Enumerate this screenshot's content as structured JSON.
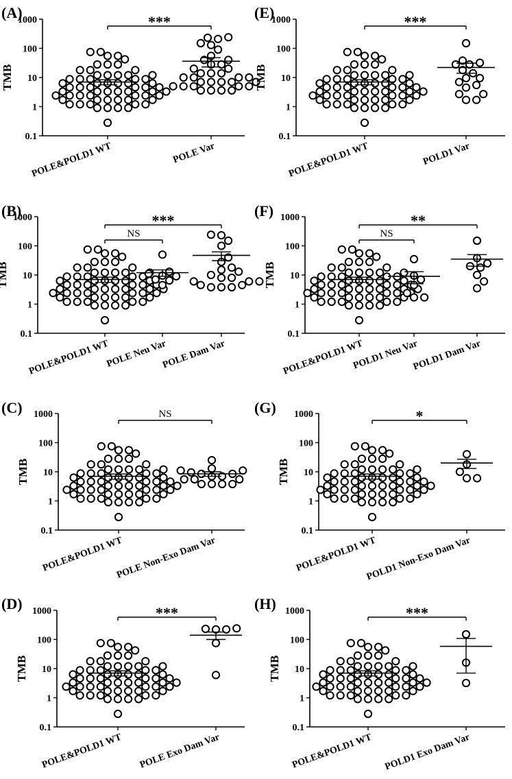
{
  "chart_data": [
    {
      "type": "scatter",
      "panel": "(A)",
      "ylabel": "TMB",
      "yscale": "log",
      "ylim": [
        0.1,
        1000
      ],
      "yticks": [
        "0.1",
        "1",
        "10",
        "100",
        "1000"
      ],
      "categories": [
        "POLE&POLD1 WT",
        "POLE Var"
      ],
      "groups": [
        {
          "mean": 7,
          "sem": [
            5.6,
            8.4
          ],
          "points": [
            0.28,
            0.9,
            0.9,
            0.9,
            0.9,
            1.2,
            1.2,
            1.2,
            1.2,
            1.2,
            1.7,
            1.7,
            1.7,
            1.7,
            1.7,
            1.7,
            2.4,
            2.4,
            2.4,
            2.4,
            2.4,
            2.4,
            2.4,
            3.3,
            3.3,
            3.3,
            3.3,
            3.3,
            3.3,
            3.3,
            4.6,
            4.6,
            4.6,
            4.6,
            4.6,
            4.6,
            6.3,
            6.3,
            6.3,
            6.3,
            6.3,
            6.3,
            8.8,
            8.8,
            8.8,
            8.8,
            8.8,
            12,
            12,
            12,
            12,
            12,
            18,
            18,
            18,
            28,
            28,
            28,
            42,
            55,
            55,
            75,
            75
          ]
        },
        {
          "mean": 36,
          "sem": [
            23,
            48
          ],
          "points": [
            3.6,
            3.6,
            3.6,
            3.6,
            5,
            5,
            5,
            5,
            5,
            7,
            7,
            7,
            7,
            7,
            10,
            10,
            10,
            10,
            14,
            14,
            14,
            20,
            20,
            28,
            28,
            40,
            40,
            55,
            90,
            130,
            150,
            210,
            230,
            240
          ]
        }
      ],
      "comparisons": [
        {
          "from": 0,
          "to": 1,
          "label": "***"
        }
      ]
    },
    {
      "type": "scatter",
      "panel": "(E)",
      "ylabel": "TMB",
      "yscale": "log",
      "ylim": [
        0.1,
        1000
      ],
      "yticks": [
        "0.1",
        "1",
        "10",
        "100",
        "1000"
      ],
      "categories": [
        "POLE&POLD1 WT",
        "POLD1 Var"
      ],
      "groups": [
        {
          "mean": 7,
          "sem": [
            5.6,
            8.4
          ],
          "points": [
            0.28,
            0.9,
            0.9,
            0.9,
            0.9,
            1.2,
            1.2,
            1.2,
            1.2,
            1.2,
            1.7,
            1.7,
            1.7,
            1.7,
            1.7,
            1.7,
            2.4,
            2.4,
            2.4,
            2.4,
            2.4,
            2.4,
            2.4,
            3.3,
            3.3,
            3.3,
            3.3,
            3.3,
            3.3,
            3.3,
            4.6,
            4.6,
            4.6,
            4.6,
            4.6,
            4.6,
            6.3,
            6.3,
            6.3,
            6.3,
            6.3,
            6.3,
            8.8,
            8.8,
            8.8,
            8.8,
            8.8,
            12,
            12,
            12,
            12,
            12,
            18,
            18,
            18,
            28,
            28,
            28,
            42,
            55,
            55,
            75,
            75
          ]
        },
        {
          "mean": 22,
          "sem": [
            14,
            31
          ],
          "points": [
            1.7,
            1.7,
            2.7,
            2.7,
            4.5,
            5.5,
            7,
            9.5,
            9.5,
            14,
            18,
            28,
            28,
            32,
            38,
            150
          ]
        }
      ],
      "comparisons": [
        {
          "from": 0,
          "to": 1,
          "label": "***"
        }
      ]
    },
    {
      "type": "scatter",
      "panel": "(B)",
      "ylabel": "TMB",
      "yscale": "log",
      "ylim": [
        0.1,
        1000
      ],
      "yticks": [
        "0.1",
        "1",
        "10",
        "100",
        "1000"
      ],
      "categories": [
        "POLE&POLD1 WT",
        "POLE Neu Var",
        "POLE Dam Var"
      ],
      "groups": [
        {
          "mean": 7,
          "sem": [
            5.6,
            8.4
          ],
          "points": [
            0.28,
            0.9,
            0.9,
            0.9,
            0.9,
            1.2,
            1.2,
            1.2,
            1.2,
            1.2,
            1.7,
            1.7,
            1.7,
            1.7,
            1.7,
            1.7,
            2.4,
            2.4,
            2.4,
            2.4,
            2.4,
            2.4,
            2.4,
            3.3,
            3.3,
            3.3,
            3.3,
            3.3,
            3.3,
            3.3,
            4.6,
            4.6,
            4.6,
            4.6,
            4.6,
            4.6,
            6.3,
            6.3,
            6.3,
            6.3,
            6.3,
            6.3,
            8.8,
            8.8,
            8.8,
            8.8,
            8.8,
            12,
            12,
            12,
            12,
            12,
            18,
            18,
            18,
            28,
            28,
            28,
            42,
            55,
            55,
            75,
            75
          ]
        },
        {
          "mean": 12,
          "sem": [
            9,
            15
          ],
          "points": [
            4.5,
            6.5,
            7,
            9,
            9.5,
            11,
            13,
            50
          ]
        },
        {
          "mean": 47,
          "sem": [
            31,
            62
          ],
          "points": [
            3.8,
            3.8,
            3.8,
            4.5,
            4.5,
            6,
            6,
            6,
            8,
            8,
            10,
            13,
            15,
            18,
            28,
            40,
            100,
            150,
            230,
            240
          ]
        }
      ],
      "comparisons": [
        {
          "from": 0,
          "to": 1,
          "label": "NS"
        },
        {
          "from": 0,
          "to": 2,
          "label": "***"
        }
      ]
    },
    {
      "type": "scatter",
      "panel": "(F)",
      "ylabel": "TMB",
      "yscale": "log",
      "ylim": [
        0.1,
        1000
      ],
      "yticks": [
        "0.1",
        "1",
        "10",
        "100",
        "1000"
      ],
      "categories": [
        "POLE&POLD1 WT",
        "POLD1 Neu Var",
        "POLD1 Dam Var"
      ],
      "groups": [
        {
          "mean": 7,
          "sem": [
            5.6,
            8.4
          ],
          "points": [
            0.28,
            0.9,
            0.9,
            0.9,
            0.9,
            1.2,
            1.2,
            1.2,
            1.2,
            1.2,
            1.7,
            1.7,
            1.7,
            1.7,
            1.7,
            1.7,
            2.4,
            2.4,
            2.4,
            2.4,
            2.4,
            2.4,
            2.4,
            3.3,
            3.3,
            3.3,
            3.3,
            3.3,
            3.3,
            3.3,
            4.6,
            4.6,
            4.6,
            4.6,
            4.6,
            4.6,
            6.3,
            6.3,
            6.3,
            6.3,
            6.3,
            6.3,
            8.8,
            8.8,
            8.8,
            8.8,
            8.8,
            12,
            12,
            12,
            12,
            12,
            18,
            18,
            18,
            28,
            28,
            28,
            42,
            55,
            55,
            75,
            75
          ]
        },
        {
          "mean": 9,
          "sem": [
            5,
            13
          ],
          "points": [
            1.7,
            1.7,
            2.4,
            4.5,
            7,
            9.5,
            35
          ]
        },
        {
          "mean": 35,
          "sem": [
            20,
            50
          ],
          "points": [
            3.5,
            6,
            10,
            18,
            20,
            25,
            38,
            150
          ]
        }
      ],
      "comparisons": [
        {
          "from": 0,
          "to": 1,
          "label": "NS"
        },
        {
          "from": 0,
          "to": 2,
          "label": "**"
        }
      ]
    },
    {
      "type": "scatter",
      "panel": "(C)",
      "ylabel": "TMB",
      "yscale": "log",
      "ylim": [
        0.1,
        1000
      ],
      "yticks": [
        "0.1",
        "1",
        "10",
        "100",
        "1000"
      ],
      "categories": [
        "POLE&POLD1 WT",
        "POLE Non-Exo Dam Var"
      ],
      "groups": [
        {
          "mean": 7,
          "sem": [
            5.6,
            8.4
          ],
          "points": [
            0.28,
            0.9,
            0.9,
            0.9,
            0.9,
            1.2,
            1.2,
            1.2,
            1.2,
            1.2,
            1.7,
            1.7,
            1.7,
            1.7,
            1.7,
            1.7,
            2.4,
            2.4,
            2.4,
            2.4,
            2.4,
            2.4,
            2.4,
            3.3,
            3.3,
            3.3,
            3.3,
            3.3,
            3.3,
            3.3,
            4.6,
            4.6,
            4.6,
            4.6,
            4.6,
            4.6,
            6.3,
            6.3,
            6.3,
            6.3,
            6.3,
            6.3,
            8.8,
            8.8,
            8.8,
            8.8,
            8.8,
            12,
            12,
            12,
            12,
            12,
            18,
            18,
            18,
            28,
            28,
            28,
            42,
            55,
            55,
            75,
            75
          ]
        },
        {
          "mean": 8.5,
          "sem": [
            7,
            10
          ],
          "points": [
            3.8,
            3.8,
            3.8,
            3.8,
            5.5,
            5.5,
            5.5,
            7,
            7,
            8.5,
            8.5,
            9.5,
            11,
            11,
            13,
            25
          ]
        }
      ],
      "comparisons": [
        {
          "from": 0,
          "to": 1,
          "label": "NS"
        }
      ]
    },
    {
      "type": "scatter",
      "panel": "(G)",
      "ylabel": "TMB",
      "yscale": "log",
      "ylim": [
        0.1,
        1000
      ],
      "yticks": [
        "0.1",
        "1",
        "10",
        "100",
        "1000"
      ],
      "categories": [
        "POLE&POLD1 WT",
        "POLD1 Non-Exo Dam Var"
      ],
      "groups": [
        {
          "mean": 7,
          "sem": [
            5.6,
            8.4
          ],
          "points": [
            0.28,
            0.9,
            0.9,
            0.9,
            0.9,
            1.2,
            1.2,
            1.2,
            1.2,
            1.2,
            1.7,
            1.7,
            1.7,
            1.7,
            1.7,
            1.7,
            2.4,
            2.4,
            2.4,
            2.4,
            2.4,
            2.4,
            2.4,
            3.3,
            3.3,
            3.3,
            3.3,
            3.3,
            3.3,
            3.3,
            4.6,
            4.6,
            4.6,
            4.6,
            4.6,
            4.6,
            6.3,
            6.3,
            6.3,
            6.3,
            6.3,
            6.3,
            8.8,
            8.8,
            8.8,
            8.8,
            8.8,
            12,
            12,
            12,
            12,
            12,
            18,
            18,
            18,
            28,
            28,
            28,
            42,
            55,
            55,
            75,
            75
          ]
        },
        {
          "mean": 20,
          "sem": [
            13,
            27
          ],
          "points": [
            6,
            6,
            10,
            18,
            40
          ]
        }
      ],
      "comparisons": [
        {
          "from": 0,
          "to": 1,
          "label": "*"
        }
      ]
    },
    {
      "type": "scatter",
      "panel": "(D)",
      "ylabel": "TMB",
      "yscale": "log",
      "ylim": [
        0.1,
        1000
      ],
      "yticks": [
        "0.1",
        "1",
        "10",
        "100",
        "1000"
      ],
      "categories": [
        "POLE&POLD1 WT",
        "POLE Exo Dam Var"
      ],
      "groups": [
        {
          "mean": 7,
          "sem": [
            5.6,
            8.4
          ],
          "points": [
            0.28,
            0.9,
            0.9,
            0.9,
            0.9,
            1.2,
            1.2,
            1.2,
            1.2,
            1.2,
            1.7,
            1.7,
            1.7,
            1.7,
            1.7,
            1.7,
            2.4,
            2.4,
            2.4,
            2.4,
            2.4,
            2.4,
            2.4,
            3.3,
            3.3,
            3.3,
            3.3,
            3.3,
            3.3,
            3.3,
            4.6,
            4.6,
            4.6,
            4.6,
            4.6,
            4.6,
            6.3,
            6.3,
            6.3,
            6.3,
            6.3,
            6.3,
            8.8,
            8.8,
            8.8,
            8.8,
            8.8,
            12,
            12,
            12,
            12,
            12,
            18,
            18,
            18,
            28,
            28,
            28,
            42,
            55,
            55,
            75,
            75
          ]
        },
        {
          "mean": 140,
          "sem": [
            100,
            180
          ],
          "points": [
            6,
            75,
            220,
            220,
            230,
            240
          ]
        }
      ],
      "comparisons": [
        {
          "from": 0,
          "to": 1,
          "label": "***"
        }
      ]
    },
    {
      "type": "scatter",
      "panel": "(H)",
      "ylabel": "TMB",
      "yscale": "log",
      "ylim": [
        0.1,
        1000
      ],
      "yticks": [
        "0.1",
        "1",
        "10",
        "100",
        "1000"
      ],
      "categories": [
        "POLE&POLD1 WT",
        "POLD1  Exo Dam Var"
      ],
      "groups": [
        {
          "mean": 7,
          "sem": [
            5.6,
            8.4
          ],
          "points": [
            0.28,
            0.9,
            0.9,
            0.9,
            0.9,
            1.2,
            1.2,
            1.2,
            1.2,
            1.2,
            1.7,
            1.7,
            1.7,
            1.7,
            1.7,
            1.7,
            2.4,
            2.4,
            2.4,
            2.4,
            2.4,
            2.4,
            2.4,
            3.3,
            3.3,
            3.3,
            3.3,
            3.3,
            3.3,
            3.3,
            4.6,
            4.6,
            4.6,
            4.6,
            4.6,
            4.6,
            6.3,
            6.3,
            6.3,
            6.3,
            6.3,
            6.3,
            8.8,
            8.8,
            8.8,
            8.8,
            8.8,
            12,
            12,
            12,
            12,
            12,
            18,
            18,
            18,
            28,
            28,
            28,
            42,
            55,
            55,
            75,
            75
          ]
        },
        {
          "mean": 58,
          "sem": [
            7,
            108
          ],
          "points": [
            3.2,
            16,
            150
          ]
        }
      ],
      "comparisons": [
        {
          "from": 0,
          "to": 1,
          "label": "***"
        }
      ]
    }
  ]
}
